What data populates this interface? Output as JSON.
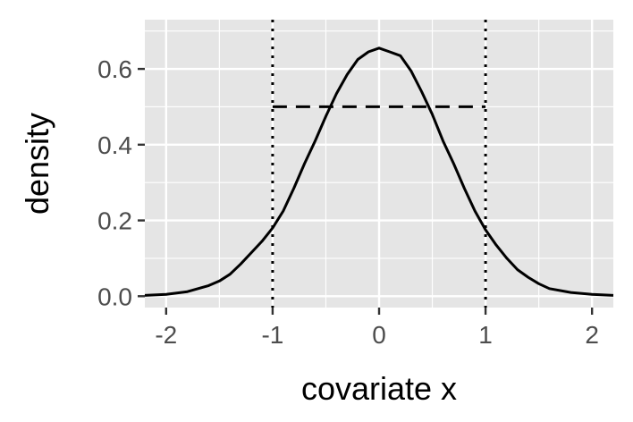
{
  "chart_data": {
    "type": "line",
    "title": "",
    "xlabel": "covariate x",
    "ylabel": "density",
    "xlim": [
      -2.2,
      2.2
    ],
    "ylim": [
      -0.03,
      0.73
    ],
    "x_ticks": [
      -2,
      -1,
      0,
      1,
      2
    ],
    "x_tick_labels": [
      "-2",
      "-1",
      "0",
      "1",
      "2"
    ],
    "y_ticks": [
      0.0,
      0.2,
      0.4,
      0.6
    ],
    "y_tick_labels": [
      "0.0",
      "0.2",
      "0.4",
      "0.6"
    ],
    "grid": true,
    "panel_background": "#e5e5e5",
    "grid_color": "#ffffff",
    "line_color": "#000000",
    "series": [
      {
        "style": "solid",
        "x": [
          -2.2,
          -2.0,
          -1.8,
          -1.6,
          -1.5,
          -1.4,
          -1.3,
          -1.2,
          -1.1,
          -1.0,
          -0.9,
          -0.8,
          -0.7,
          -0.6,
          -0.5,
          -0.4,
          -0.3,
          -0.2,
          -0.1,
          0.0,
          0.1,
          0.2,
          0.3,
          0.4,
          0.5,
          0.6,
          0.7,
          0.8,
          0.9,
          1.0,
          1.1,
          1.2,
          1.3,
          1.4,
          1.5,
          1.6,
          1.8,
          2.0,
          2.2
        ],
        "y": [
          0.002,
          0.005,
          0.012,
          0.028,
          0.04,
          0.058,
          0.085,
          0.115,
          0.145,
          0.18,
          0.225,
          0.285,
          0.35,
          0.41,
          0.475,
          0.535,
          0.585,
          0.625,
          0.645,
          0.655,
          0.645,
          0.635,
          0.595,
          0.54,
          0.48,
          0.41,
          0.35,
          0.285,
          0.225,
          0.175,
          0.135,
          0.1,
          0.07,
          0.05,
          0.033,
          0.02,
          0.01,
          0.005,
          0.002
        ]
      },
      {
        "style": "dashed",
        "x": [
          -1.0,
          1.0
        ],
        "y": [
          0.5,
          0.5
        ]
      }
    ],
    "vlines": [
      {
        "x": -1,
        "style": "dotted"
      },
      {
        "x": 1,
        "style": "dotted"
      }
    ]
  }
}
